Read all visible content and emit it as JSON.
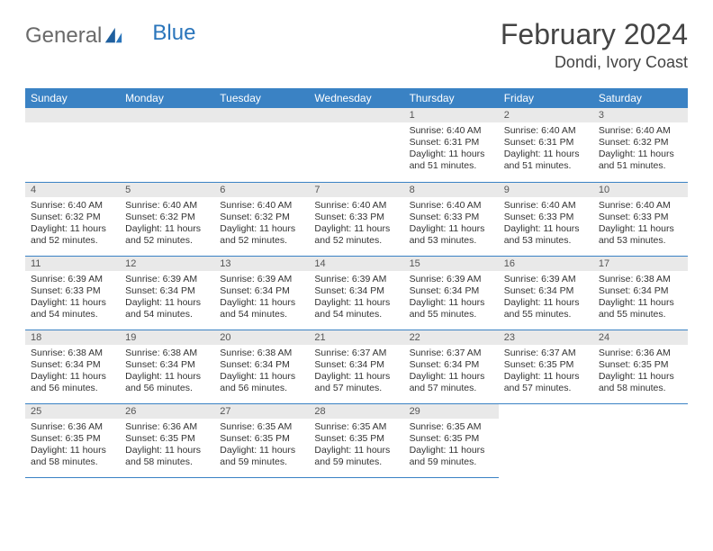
{
  "brand": {
    "part1": "General",
    "part2": "Blue"
  },
  "title": "February 2024",
  "location": "Dondi, Ivory Coast",
  "colors": {
    "header_bg": "#3a82c4",
    "header_text": "#ffffff",
    "daynum_bg": "#e9e9e9",
    "border": "#3a82c4",
    "brand_gray": "#6a6a6a",
    "brand_blue": "#2a75bb"
  },
  "weekdays": [
    "Sunday",
    "Monday",
    "Tuesday",
    "Wednesday",
    "Thursday",
    "Friday",
    "Saturday"
  ],
  "weeks": [
    [
      null,
      null,
      null,
      null,
      {
        "n": "1",
        "sr": "6:40 AM",
        "ss": "6:31 PM",
        "dl": "11 hours and 51 minutes."
      },
      {
        "n": "2",
        "sr": "6:40 AM",
        "ss": "6:31 PM",
        "dl": "11 hours and 51 minutes."
      },
      {
        "n": "3",
        "sr": "6:40 AM",
        "ss": "6:32 PM",
        "dl": "11 hours and 51 minutes."
      }
    ],
    [
      {
        "n": "4",
        "sr": "6:40 AM",
        "ss": "6:32 PM",
        "dl": "11 hours and 52 minutes."
      },
      {
        "n": "5",
        "sr": "6:40 AM",
        "ss": "6:32 PM",
        "dl": "11 hours and 52 minutes."
      },
      {
        "n": "6",
        "sr": "6:40 AM",
        "ss": "6:32 PM",
        "dl": "11 hours and 52 minutes."
      },
      {
        "n": "7",
        "sr": "6:40 AM",
        "ss": "6:33 PM",
        "dl": "11 hours and 52 minutes."
      },
      {
        "n": "8",
        "sr": "6:40 AM",
        "ss": "6:33 PM",
        "dl": "11 hours and 53 minutes."
      },
      {
        "n": "9",
        "sr": "6:40 AM",
        "ss": "6:33 PM",
        "dl": "11 hours and 53 minutes."
      },
      {
        "n": "10",
        "sr": "6:40 AM",
        "ss": "6:33 PM",
        "dl": "11 hours and 53 minutes."
      }
    ],
    [
      {
        "n": "11",
        "sr": "6:39 AM",
        "ss": "6:33 PM",
        "dl": "11 hours and 54 minutes."
      },
      {
        "n": "12",
        "sr": "6:39 AM",
        "ss": "6:34 PM",
        "dl": "11 hours and 54 minutes."
      },
      {
        "n": "13",
        "sr": "6:39 AM",
        "ss": "6:34 PM",
        "dl": "11 hours and 54 minutes."
      },
      {
        "n": "14",
        "sr": "6:39 AM",
        "ss": "6:34 PM",
        "dl": "11 hours and 54 minutes."
      },
      {
        "n": "15",
        "sr": "6:39 AM",
        "ss": "6:34 PM",
        "dl": "11 hours and 55 minutes."
      },
      {
        "n": "16",
        "sr": "6:39 AM",
        "ss": "6:34 PM",
        "dl": "11 hours and 55 minutes."
      },
      {
        "n": "17",
        "sr": "6:38 AM",
        "ss": "6:34 PM",
        "dl": "11 hours and 55 minutes."
      }
    ],
    [
      {
        "n": "18",
        "sr": "6:38 AM",
        "ss": "6:34 PM",
        "dl": "11 hours and 56 minutes."
      },
      {
        "n": "19",
        "sr": "6:38 AM",
        "ss": "6:34 PM",
        "dl": "11 hours and 56 minutes."
      },
      {
        "n": "20",
        "sr": "6:38 AM",
        "ss": "6:34 PM",
        "dl": "11 hours and 56 minutes."
      },
      {
        "n": "21",
        "sr": "6:37 AM",
        "ss": "6:34 PM",
        "dl": "11 hours and 57 minutes."
      },
      {
        "n": "22",
        "sr": "6:37 AM",
        "ss": "6:34 PM",
        "dl": "11 hours and 57 minutes."
      },
      {
        "n": "23",
        "sr": "6:37 AM",
        "ss": "6:35 PM",
        "dl": "11 hours and 57 minutes."
      },
      {
        "n": "24",
        "sr": "6:36 AM",
        "ss": "6:35 PM",
        "dl": "11 hours and 58 minutes."
      }
    ],
    [
      {
        "n": "25",
        "sr": "6:36 AM",
        "ss": "6:35 PM",
        "dl": "11 hours and 58 minutes."
      },
      {
        "n": "26",
        "sr": "6:36 AM",
        "ss": "6:35 PM",
        "dl": "11 hours and 58 minutes."
      },
      {
        "n": "27",
        "sr": "6:35 AM",
        "ss": "6:35 PM",
        "dl": "11 hours and 59 minutes."
      },
      {
        "n": "28",
        "sr": "6:35 AM",
        "ss": "6:35 PM",
        "dl": "11 hours and 59 minutes."
      },
      {
        "n": "29",
        "sr": "6:35 AM",
        "ss": "6:35 PM",
        "dl": "11 hours and 59 minutes."
      },
      null,
      null
    ]
  ],
  "labels": {
    "sunrise": "Sunrise: ",
    "sunset": "Sunset: ",
    "daylight": "Daylight: "
  }
}
